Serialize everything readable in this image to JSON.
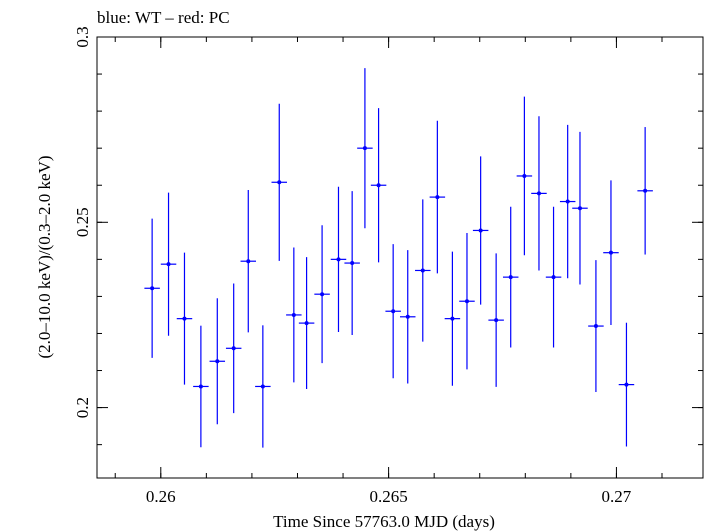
{
  "chart_data": {
    "type": "scatter",
    "title": "blue: WT – red: PC",
    "xlabel": "Time Since 57763.0 MJD (days)",
    "ylabel": "(2.0–10.0 keV)/(0.3–2.0 keV)",
    "xlim": [
      0.2586,
      0.2719
    ],
    "ylim": [
      0.181,
      0.3
    ],
    "x_ticks": [
      {
        "value": 0.26,
        "label": "0.26"
      },
      {
        "value": 0.265,
        "label": "0.265"
      },
      {
        "value": 0.27,
        "label": "0.27"
      }
    ],
    "x_minor_step": 0.001,
    "y_ticks": [
      {
        "value": 0.2,
        "label": "0.2"
      },
      {
        "value": 0.25,
        "label": "0.25"
      },
      {
        "value": 0.3,
        "label": "0.3"
      }
    ],
    "y_minor_step": 0.01,
    "grid": false,
    "series": [
      {
        "color": "#0000ff",
        "x_halfwidth": 0.00017,
        "points": [
          {
            "x": 0.25981,
            "y": 0.2322,
            "yerr": 0.0188
          },
          {
            "x": 0.26017,
            "y": 0.2387,
            "yerr": 0.0193
          },
          {
            "x": 0.26052,
            "y": 0.224,
            "yerr": 0.0178
          },
          {
            "x": 0.26088,
            "y": 0.2057,
            "yerr": 0.0164
          },
          {
            "x": 0.26124,
            "y": 0.2125,
            "yerr": 0.017
          },
          {
            "x": 0.2616,
            "y": 0.216,
            "yerr": 0.0175
          },
          {
            "x": 0.26192,
            "y": 0.2395,
            "yerr": 0.0192
          },
          {
            "x": 0.26224,
            "y": 0.2057,
            "yerr": 0.0165
          },
          {
            "x": 0.2626,
            "y": 0.2608,
            "yerr": 0.0212
          },
          {
            "x": 0.26292,
            "y": 0.225,
            "yerr": 0.0182
          },
          {
            "x": 0.2632,
            "y": 0.2228,
            "yerr": 0.0178
          },
          {
            "x": 0.26354,
            "y": 0.2306,
            "yerr": 0.0186
          },
          {
            "x": 0.2639,
            "y": 0.24,
            "yerr": 0.0196
          },
          {
            "x": 0.2642,
            "y": 0.239,
            "yerr": 0.0194
          },
          {
            "x": 0.26448,
            "y": 0.27,
            "yerr": 0.0216
          },
          {
            "x": 0.26478,
            "y": 0.26,
            "yerr": 0.0208
          },
          {
            "x": 0.2651,
            "y": 0.226,
            "yerr": 0.0181
          },
          {
            "x": 0.26542,
            "y": 0.2245,
            "yerr": 0.018
          },
          {
            "x": 0.26575,
            "y": 0.237,
            "yerr": 0.0192
          },
          {
            "x": 0.26607,
            "y": 0.2568,
            "yerr": 0.0206
          },
          {
            "x": 0.2664,
            "y": 0.224,
            "yerr": 0.0181
          },
          {
            "x": 0.26672,
            "y": 0.2287,
            "yerr": 0.0184
          },
          {
            "x": 0.26702,
            "y": 0.2478,
            "yerr": 0.02
          },
          {
            "x": 0.26736,
            "y": 0.2236,
            "yerr": 0.018
          },
          {
            "x": 0.26768,
            "y": 0.2352,
            "yerr": 0.019
          },
          {
            "x": 0.26798,
            "y": 0.2625,
            "yerr": 0.0214
          },
          {
            "x": 0.2683,
            "y": 0.2578,
            "yerr": 0.0208
          },
          {
            "x": 0.26862,
            "y": 0.2352,
            "yerr": 0.019
          },
          {
            "x": 0.26893,
            "y": 0.2556,
            "yerr": 0.0207
          },
          {
            "x": 0.2692,
            "y": 0.2538,
            "yerr": 0.0206
          },
          {
            "x": 0.26955,
            "y": 0.222,
            "yerr": 0.0178
          },
          {
            "x": 0.26988,
            "y": 0.2418,
            "yerr": 0.0195
          },
          {
            "x": 0.27022,
            "y": 0.2062,
            "yerr": 0.0167
          },
          {
            "x": 0.27063,
            "y": 0.2585,
            "yerr": 0.0172
          }
        ]
      }
    ]
  }
}
